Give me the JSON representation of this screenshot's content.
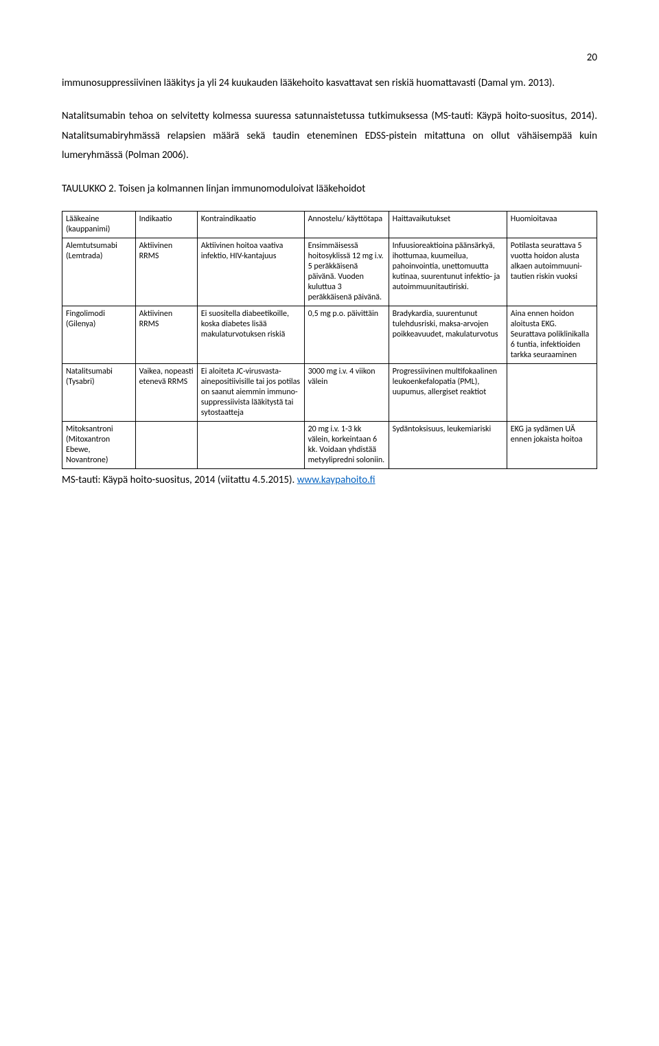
{
  "page_number": "20",
  "para1": "immunosuppressiivinen lääkitys ja yli 24 kuukauden lääkehoito kasvattavat sen riskiä huomattavasti (Damal ym. 2013).",
  "para2": "Natalitsumabin tehoa on selvitetty kolmessa suuressa satunnaistetussa tutkimuksessa (MS-tauti: Käypä hoito-suositus, 2014). Natalitsumabiryhmässä relapsien määrä sekä taudin eteneminen EDSS-pistein mitattuna on ollut vähäisempää kuin lumeryhmässä (Polman 2006).",
  "table_title": "TAULUKKO 2. Toisen ja kolmannen linjan immunomoduloivat lääkehoidot",
  "columns": {
    "drug": "Lääkeaine (kauppanimi)",
    "indication": "Indikaatio",
    "contra": "Kontraindikaatio",
    "dose": "Annostelu/ käyttötapa",
    "adverse": "Haittavaikutukset",
    "note": "Huomioitavaa"
  },
  "rows": [
    {
      "drug": "Alemtutsumabi (Lemtrada)",
      "indication": "Aktiivinen RRMS",
      "contra": "Aktiivinen hoitoa vaativa infektio, HIV-kantajuus",
      "dose": "Ensimmäisessä hoitosyklissä 12 mg i.v. 5 peräkkäisenä päivänä. Vuoden kuluttua 3 peräkkäisenä päivänä.",
      "adverse": "Infuusioreaktioina päänsärkyä, ihottumaa, kuumeilua, pahoinvointia, unettomuutta kutinaa, suurentunut infektio- ja autoimmuunitautiriski.",
      "note": "Potilasta seurattava 5 vuotta hoidon alusta alkaen autoimmuuni-tautien riskin vuoksi"
    },
    {
      "drug": "Fingolimodi (Gilenya)",
      "indication": "Aktiivinen RRMS",
      "contra": "Ei suositella diabeetikoille, koska diabetes lisää makulaturvotuksen riskiä",
      "dose": "0,5 mg p.o. päivittäin",
      "adverse": "Bradykardia, suurentunut tulehdusriski, maksa-arvojen poikkeavuudet, makulaturvotus",
      "note": "Aina ennen hoidon aloitusta EKG. Seurattava poliklinikalla 6 tuntia, infektioiden tarkka seuraaminen"
    },
    {
      "drug": "Natalitsumabi (Tysabri)",
      "indication": "Vaikea, nopeasti etenevä RRMS",
      "contra": "Ei aloiteta JC-virusvasta-ainepositiivisille tai jos potilas on saanut aiemmin immuno-suppressiivista lääkitystä tai sytostaatteja",
      "dose": "3000 mg i.v. 4 viikon välein",
      "adverse": "Progressiivinen multifokaalinen leukoenkefalopatia (PML), uupumus, allergiset reaktiot",
      "note": ""
    },
    {
      "drug": "Mitoksantroni (Mitoxantron Ebewe, Novantrone)",
      "indication": "",
      "contra": "",
      "dose": "20 mg i.v. 1-3 kk välein, korkeintaan 6 kk. Voidaan yhdistää metyylipredni soloniin.",
      "adverse": "Sydäntoksisuus, leukemiariski",
      "note": "EKG ja sydämen UÄ ennen jokaista hoitoa"
    }
  ],
  "source_prefix": "MS-tauti: Käypä hoito-suositus, 2014 (viitattu 4.5.2015). ",
  "source_link": "www.kaypahoito.fi"
}
